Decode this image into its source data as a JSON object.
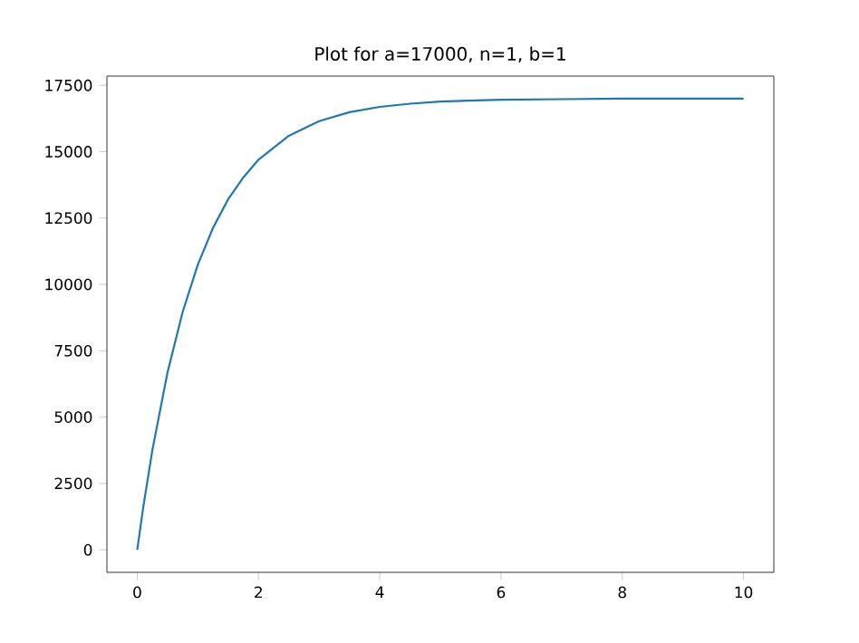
{
  "chart_data": {
    "type": "line",
    "title": "Plot for a=17000, n=1, b=1",
    "x": [
      0,
      0.1,
      0.25,
      0.5,
      0.75,
      1,
      1.25,
      1.5,
      1.75,
      2,
      2.5,
      3,
      3.5,
      4,
      4.5,
      5,
      6,
      7,
      8,
      9,
      10
    ],
    "series": [
      {
        "color": "#1f77b4",
        "values": [
          0,
          1620,
          3760,
          6690,
          8970,
          10750,
          12130,
          13210,
          14030,
          14700,
          15600,
          16150,
          16490,
          16690,
          16810,
          16890,
          16960,
          16980,
          17000,
          17000,
          17000
        ]
      }
    ],
    "xlim": [
      -0.5,
      10.5
    ],
    "ylim": [
      -850,
      17850
    ],
    "xticks": [
      0,
      2,
      4,
      6,
      8,
      10
    ],
    "yticks": [
      0,
      2500,
      5000,
      7500,
      10000,
      12500,
      15000,
      17500
    ],
    "marker": "none",
    "line_style": "solid"
  }
}
